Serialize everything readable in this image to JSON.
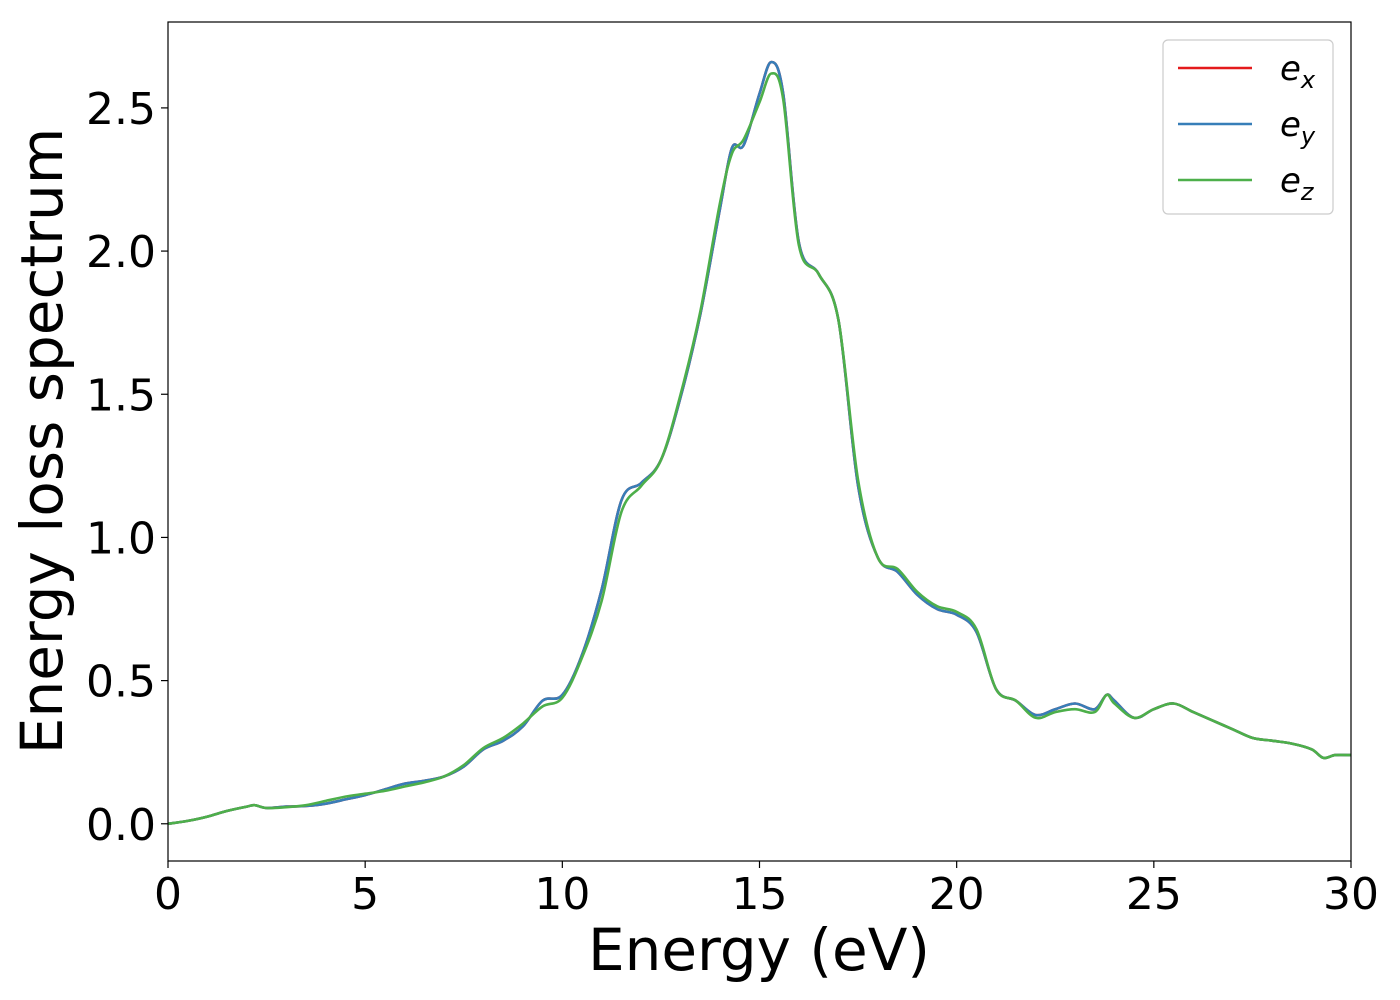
{
  "chart_data": {
    "type": "line",
    "title": "",
    "xlabel": "Energy (eV)",
    "ylabel": "Energy loss spectrum",
    "xlim": [
      0,
      30
    ],
    "ylim": [
      -0.13,
      2.8
    ],
    "xticks": [
      0,
      5,
      10,
      15,
      20,
      25,
      30
    ],
    "xtick_labels": [
      "0",
      "5",
      "10",
      "15",
      "20",
      "25",
      "30"
    ],
    "yticks": [
      0.0,
      0.5,
      1.0,
      1.5,
      2.0,
      2.5
    ],
    "ytick_labels": [
      "0.0",
      "0.5",
      "1.0",
      "1.5",
      "2.0",
      "2.5"
    ],
    "grid": false,
    "legend_position": "top-right",
    "series": [
      {
        "name": "e_x",
        "color": "#e41a1c",
        "x": [
          0,
          0.5,
          1,
          1.5,
          2,
          2.2,
          2.5,
          3,
          3.5,
          4,
          4.5,
          5,
          5.5,
          6,
          6.5,
          7,
          7.5,
          8,
          8.5,
          9,
          9.5,
          10,
          10.5,
          11,
          11.5,
          12,
          12.5,
          13,
          13.5,
          14,
          14.3,
          14.6,
          15,
          15.3,
          15.6,
          16,
          16.5,
          17,
          17.5,
          18,
          18.5,
          19,
          19.5,
          20,
          20.5,
          21,
          21.5,
          22,
          22.5,
          23,
          23.5,
          23.8,
          24,
          24.5,
          25,
          25.5,
          26,
          26.5,
          27,
          27.5,
          28,
          28.5,
          29,
          29.3,
          29.6,
          30
        ],
        "values": [
          0.0,
          0.01,
          0.025,
          0.045,
          0.06,
          0.065,
          0.055,
          0.06,
          0.062,
          0.07,
          0.085,
          0.1,
          0.12,
          0.14,
          0.15,
          0.165,
          0.2,
          0.26,
          0.29,
          0.34,
          0.43,
          0.45,
          0.59,
          0.82,
          1.13,
          1.19,
          1.27,
          1.49,
          1.78,
          2.15,
          2.36,
          2.37,
          2.55,
          2.66,
          2.55,
          2.03,
          1.92,
          1.76,
          1.18,
          0.93,
          0.88,
          0.8,
          0.75,
          0.73,
          0.67,
          0.47,
          0.43,
          0.38,
          0.4,
          0.42,
          0.4,
          0.45,
          0.43,
          0.37,
          0.4,
          0.42,
          0.39,
          0.36,
          0.33,
          0.3,
          0.29,
          0.28,
          0.26,
          0.23,
          0.24,
          0.24
        ]
      },
      {
        "name": "e_y",
        "color": "#377eb8",
        "x": [
          0,
          0.5,
          1,
          1.5,
          2,
          2.2,
          2.5,
          3,
          3.5,
          4,
          4.5,
          5,
          5.5,
          6,
          6.5,
          7,
          7.5,
          8,
          8.5,
          9,
          9.5,
          10,
          10.5,
          11,
          11.5,
          12,
          12.5,
          13,
          13.5,
          14,
          14.3,
          14.6,
          15,
          15.3,
          15.6,
          16,
          16.5,
          17,
          17.5,
          18,
          18.5,
          19,
          19.5,
          20,
          20.5,
          21,
          21.5,
          22,
          22.5,
          23,
          23.5,
          23.8,
          24,
          24.5,
          25,
          25.5,
          26,
          26.5,
          27,
          27.5,
          28,
          28.5,
          29,
          29.3,
          29.6,
          30
        ],
        "values": [
          0.0,
          0.01,
          0.025,
          0.045,
          0.06,
          0.065,
          0.055,
          0.06,
          0.062,
          0.07,
          0.085,
          0.1,
          0.12,
          0.14,
          0.15,
          0.165,
          0.2,
          0.26,
          0.29,
          0.34,
          0.43,
          0.45,
          0.59,
          0.82,
          1.13,
          1.19,
          1.27,
          1.49,
          1.78,
          2.15,
          2.36,
          2.37,
          2.55,
          2.66,
          2.55,
          2.03,
          1.92,
          1.76,
          1.18,
          0.93,
          0.88,
          0.8,
          0.75,
          0.73,
          0.67,
          0.47,
          0.43,
          0.38,
          0.4,
          0.42,
          0.4,
          0.45,
          0.43,
          0.37,
          0.4,
          0.42,
          0.39,
          0.36,
          0.33,
          0.3,
          0.29,
          0.28,
          0.26,
          0.23,
          0.24,
          0.24
        ]
      },
      {
        "name": "e_z",
        "color": "#4daf4a",
        "x": [
          0,
          0.5,
          1,
          1.5,
          2,
          2.2,
          2.5,
          3,
          3.5,
          4,
          4.5,
          5,
          5.5,
          6,
          6.5,
          7,
          7.5,
          8,
          8.5,
          9,
          9.5,
          10,
          10.5,
          11,
          11.5,
          12,
          12.5,
          13,
          13.5,
          14,
          14.3,
          14.6,
          15,
          15.3,
          15.6,
          16,
          16.5,
          17,
          17.5,
          18,
          18.5,
          19,
          19.5,
          20,
          20.5,
          21,
          21.5,
          22,
          22.5,
          23,
          23.5,
          23.8,
          24,
          24.5,
          25,
          25.5,
          26,
          26.5,
          27,
          27.5,
          28,
          28.5,
          29,
          29.3,
          29.6,
          30
        ],
        "values": [
          0.0,
          0.01,
          0.025,
          0.045,
          0.06,
          0.065,
          0.055,
          0.058,
          0.065,
          0.08,
          0.095,
          0.105,
          0.115,
          0.13,
          0.145,
          0.165,
          0.205,
          0.265,
          0.3,
          0.35,
          0.41,
          0.44,
          0.58,
          0.78,
          1.09,
          1.18,
          1.27,
          1.5,
          1.79,
          2.17,
          2.34,
          2.39,
          2.52,
          2.62,
          2.53,
          2.02,
          1.92,
          1.76,
          1.2,
          0.93,
          0.89,
          0.81,
          0.76,
          0.74,
          0.68,
          0.47,
          0.43,
          0.37,
          0.39,
          0.4,
          0.39,
          0.45,
          0.42,
          0.37,
          0.4,
          0.42,
          0.39,
          0.36,
          0.33,
          0.3,
          0.29,
          0.28,
          0.26,
          0.23,
          0.24,
          0.24
        ]
      }
    ],
    "legend": [
      {
        "main": "e",
        "sub": "x",
        "color": "#e41a1c"
      },
      {
        "main": "e",
        "sub": "y",
        "color": "#377eb8"
      },
      {
        "main": "e",
        "sub": "z",
        "color": "#4daf4a"
      }
    ]
  }
}
